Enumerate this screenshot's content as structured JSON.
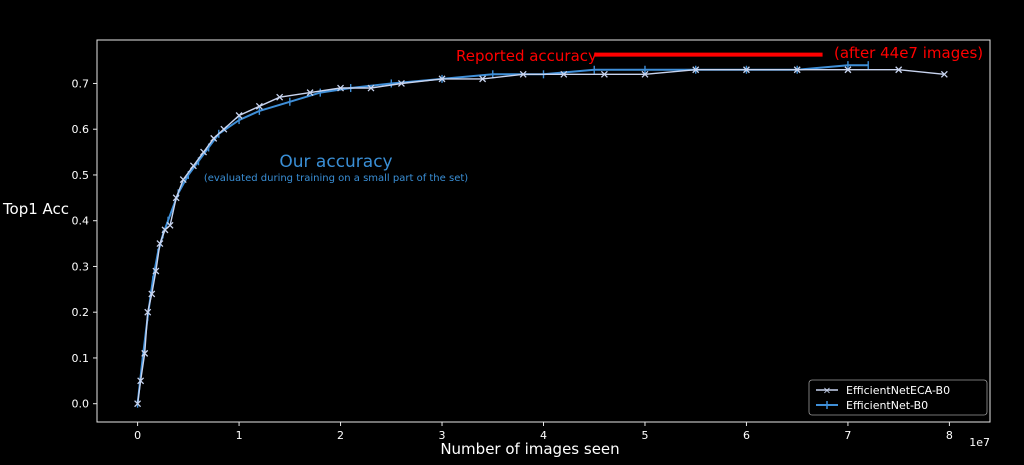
{
  "chart_data": {
    "type": "line",
    "xlabel": "Number of images seen",
    "ylabel": "Top1 Acc",
    "x_offset_label": "1e7",
    "xlim": [
      -0.4,
      8.4
    ],
    "ylim": [
      -0.04,
      0.795
    ],
    "x_ticks": [
      0,
      1,
      2,
      3,
      4,
      5,
      6,
      7,
      8
    ],
    "y_ticks": [
      0.0,
      0.1,
      0.2,
      0.3,
      0.4,
      0.5,
      0.6,
      0.7
    ],
    "grid": false,
    "legend_position": "lower-right",
    "series": [
      {
        "name": "EfficientNetECA-B0",
        "marker": "x",
        "color": "#c8d4ef",
        "x": [
          0.0,
          0.03,
          0.07,
          0.1,
          0.14,
          0.18,
          0.22,
          0.27,
          0.32,
          0.38,
          0.45,
          0.55,
          0.65,
          0.75,
          0.85,
          1.0,
          1.2,
          1.4,
          1.7,
          2.0,
          2.3,
          2.6,
          3.0,
          3.4,
          3.8,
          4.2,
          4.6,
          5.0,
          5.5,
          6.0,
          6.5,
          7.0,
          7.5,
          7.95
        ],
        "y": [
          0.0,
          0.05,
          0.11,
          0.2,
          0.24,
          0.29,
          0.35,
          0.38,
          0.39,
          0.45,
          0.49,
          0.52,
          0.55,
          0.58,
          0.6,
          0.63,
          0.65,
          0.67,
          0.68,
          0.69,
          0.69,
          0.7,
          0.71,
          0.71,
          0.72,
          0.72,
          0.72,
          0.72,
          0.73,
          0.73,
          0.73,
          0.73,
          0.73,
          0.72
        ]
      },
      {
        "name": "EfficientNet-B0",
        "marker": "|",
        "color": "#3f8fd8",
        "x": [
          0.0,
          0.05,
          0.1,
          0.15,
          0.2,
          0.25,
          0.3,
          0.4,
          0.5,
          0.6,
          0.7,
          0.8,
          1.0,
          1.2,
          1.5,
          1.8,
          2.1,
          2.5,
          3.0,
          3.5,
          4.0,
          4.5,
          5.0,
          5.5,
          6.0,
          6.5,
          7.0,
          7.2
        ],
        "y": [
          0.0,
          0.1,
          0.19,
          0.27,
          0.33,
          0.37,
          0.4,
          0.46,
          0.5,
          0.53,
          0.56,
          0.59,
          0.62,
          0.64,
          0.66,
          0.68,
          0.69,
          0.7,
          0.71,
          0.72,
          0.72,
          0.73,
          0.73,
          0.73,
          0.73,
          0.73,
          0.74,
          0.74
        ]
      }
    ],
    "annotations": [
      {
        "text": "Reported accuracy",
        "color": "#ff0000"
      },
      {
        "text": "(after 44e7 images)",
        "color": "#ff0000"
      },
      {
        "text": "Our accuracy",
        "color": "#3a8fd6"
      },
      {
        "text": "(evaluated during training on a small part of the set)",
        "color": "#3a8fd6"
      }
    ],
    "reference_line": {
      "x_start": 4.5,
      "x_end": 6.75,
      "y": 0.763,
      "color": "#ff0000"
    }
  }
}
